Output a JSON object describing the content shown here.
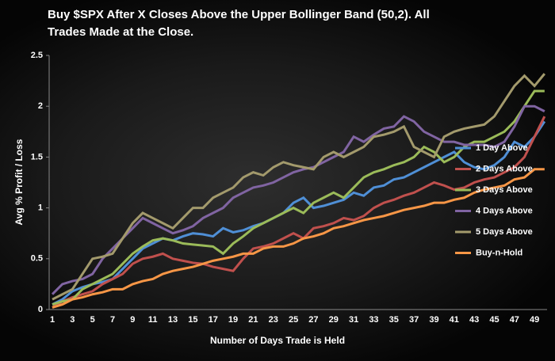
{
  "chart_data": {
    "type": "line",
    "title": "Buy $SPX After X Closes Above the Upper Bollinger Band (50,2). All Trades Made at the Close.",
    "xlabel": "Number of Days Trade is Held",
    "ylabel": "Avg % Profit / Loss",
    "categories": [
      1,
      null,
      3,
      null,
      5,
      null,
      7,
      null,
      9,
      null,
      11,
      null,
      13,
      null,
      15,
      null,
      17,
      null,
      19,
      null,
      21,
      null,
      23,
      null,
      25,
      null,
      27,
      null,
      29,
      null,
      31,
      null,
      33,
      null,
      35,
      null,
      37,
      null,
      39,
      null,
      41,
      null,
      43,
      null,
      45,
      null,
      47,
      null,
      49,
      null
    ],
    "ylim": [
      0,
      2.5
    ],
    "yticks": [
      0,
      0.5,
      1,
      1.5,
      2,
      2.5
    ],
    "grid": false,
    "legend": "right",
    "series": [
      {
        "name": "1 Day Above",
        "color": "#4f8fd6",
        "values": [
          0.05,
          0.1,
          0.18,
          0.22,
          0.25,
          0.27,
          0.3,
          0.4,
          0.5,
          0.6,
          0.65,
          0.7,
          0.68,
          0.72,
          0.75,
          0.74,
          0.72,
          0.8,
          0.76,
          0.78,
          0.82,
          0.85,
          0.9,
          0.95,
          1.05,
          1.1,
          1.0,
          1.02,
          1.05,
          1.08,
          1.15,
          1.12,
          1.2,
          1.22,
          1.28,
          1.3,
          1.35,
          1.4,
          1.45,
          1.5,
          1.55,
          1.45,
          1.4,
          1.38,
          1.42,
          1.5,
          1.65,
          1.6,
          1.7,
          1.85
        ]
      },
      {
        "name": "2 Days Above",
        "color": "#c0504d",
        "values": [
          0.02,
          0.08,
          0.12,
          0.15,
          0.18,
          0.25,
          0.3,
          0.35,
          0.45,
          0.5,
          0.52,
          0.55,
          0.5,
          0.48,
          0.46,
          0.45,
          0.42,
          0.4,
          0.38,
          0.5,
          0.6,
          0.62,
          0.65,
          0.7,
          0.75,
          0.7,
          0.8,
          0.82,
          0.85,
          0.9,
          0.88,
          0.92,
          1.0,
          1.05,
          1.08,
          1.12,
          1.15,
          1.2,
          1.25,
          1.22,
          1.18,
          1.2,
          1.25,
          1.28,
          1.3,
          1.35,
          1.4,
          1.5,
          1.7,
          1.9
        ]
      },
      {
        "name": "3 Days Above",
        "color": "#9bbb59",
        "values": [
          0.05,
          0.08,
          0.1,
          0.2,
          0.25,
          0.3,
          0.35,
          0.45,
          0.55,
          0.62,
          0.68,
          0.7,
          0.68,
          0.65,
          0.64,
          0.63,
          0.62,
          0.55,
          0.65,
          0.72,
          0.8,
          0.85,
          0.9,
          0.95,
          1.0,
          0.95,
          1.05,
          1.1,
          1.15,
          1.1,
          1.2,
          1.3,
          1.35,
          1.38,
          1.42,
          1.45,
          1.5,
          1.6,
          1.55,
          1.45,
          1.5,
          1.6,
          1.65,
          1.65,
          1.7,
          1.75,
          1.85,
          2.0,
          2.15,
          2.15
        ]
      },
      {
        "name": "4 Days Above",
        "color": "#8064a2",
        "values": [
          0.15,
          0.25,
          0.28,
          0.3,
          0.35,
          0.5,
          0.6,
          0.7,
          0.8,
          0.9,
          0.85,
          0.8,
          0.75,
          0.78,
          0.82,
          0.9,
          0.95,
          1.0,
          1.1,
          1.15,
          1.2,
          1.22,
          1.25,
          1.3,
          1.35,
          1.38,
          1.4,
          1.45,
          1.5,
          1.55,
          1.7,
          1.65,
          1.72,
          1.78,
          1.8,
          1.9,
          1.85,
          1.75,
          1.7,
          1.65,
          1.65,
          1.62,
          1.62,
          1.62,
          1.6,
          1.65,
          1.8,
          2.0,
          2.0,
          1.95
        ]
      },
      {
        "name": "5 Days Above",
        "color": "#a39a6c",
        "values": [
          0.1,
          0.15,
          0.2,
          0.35,
          0.5,
          0.52,
          0.55,
          0.7,
          0.85,
          0.95,
          0.9,
          0.85,
          0.8,
          0.9,
          1.0,
          1.0,
          1.1,
          1.15,
          1.2,
          1.3,
          1.35,
          1.32,
          1.4,
          1.45,
          1.42,
          1.4,
          1.38,
          1.5,
          1.55,
          1.5,
          1.55,
          1.6,
          1.7,
          1.72,
          1.75,
          1.8,
          1.6,
          1.55,
          1.5,
          1.7,
          1.75,
          1.78,
          1.8,
          1.82,
          1.9,
          2.05,
          2.2,
          2.3,
          2.2,
          2.32
        ]
      },
      {
        "name": "Buy-n-Hold",
        "color": "#f79646",
        "values": [
          0.02,
          0.05,
          0.1,
          0.12,
          0.15,
          0.17,
          0.2,
          0.2,
          0.25,
          0.28,
          0.3,
          0.35,
          0.38,
          0.4,
          0.42,
          0.45,
          0.48,
          0.5,
          0.52,
          0.55,
          0.55,
          0.6,
          0.62,
          0.62,
          0.65,
          0.7,
          0.72,
          0.75,
          0.8,
          0.82,
          0.85,
          0.88,
          0.9,
          0.92,
          0.95,
          0.98,
          1.0,
          1.02,
          1.05,
          1.05,
          1.08,
          1.1,
          1.15,
          1.18,
          1.2,
          1.22,
          1.28,
          1.3,
          1.38,
          1.38
        ]
      }
    ]
  }
}
